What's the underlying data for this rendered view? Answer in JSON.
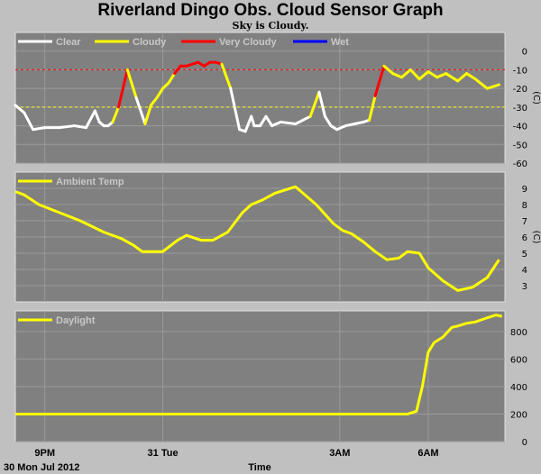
{
  "title": "Riverland Dingo Obs. Cloud Sensor Graph",
  "subtitle": "Sky is Cloudy.",
  "footer": {
    "date": "30 Mon Jul 2012",
    "xlabel": "Time"
  },
  "colors": {
    "panel_bg": "#808080",
    "page_bg": "#c0c0c0",
    "clear": "#ffffff",
    "cloudy": "#ffff00",
    "very_cloudy": "#ff0000",
    "wet": "#0000ff"
  },
  "x_ticks": [
    "9PM",
    "31 Tue",
    "3AM",
    "6AM"
  ],
  "chart_data": [
    {
      "type": "line",
      "name": "cloud",
      "legend": [
        "Clear",
        "Cloudy",
        "Very Cloudy",
        "Wet"
      ],
      "ylabel": "(C)",
      "ylim": [
        -60,
        10
      ],
      "yticks": [
        -60,
        -50,
        -40,
        -30,
        -20,
        -10,
        0
      ],
      "thresholds": [
        {
          "value": -10,
          "color": "red"
        },
        {
          "value": -30,
          "color": "yellow"
        }
      ],
      "x_hours": [
        0,
        0.3,
        0.6,
        1,
        1.5,
        2,
        2.4,
        2.7,
        2.85,
        3,
        3.15,
        3.3,
        3.5,
        3.8,
        4.1,
        4.4,
        4.6,
        4.8,
        5.0,
        5.2,
        5.4,
        5.6,
        5.8,
        6.0,
        6.2,
        6.4,
        6.6,
        6.8,
        7.0,
        7.3,
        7.6,
        7.8,
        8.0,
        8.1,
        8.3,
        8.5,
        8.7,
        9.0,
        9.5,
        10.0,
        10.3,
        10.5,
        10.7,
        10.9,
        11.2,
        11.5,
        11.8,
        12.0,
        12.2,
        12.5,
        12.8,
        13.1,
        13.4,
        13.7,
        14.0,
        14.3,
        14.6,
        15.0,
        15.3,
        15.6,
        16.0,
        16.4
      ],
      "values": [
        -29,
        -33,
        -42,
        -41,
        -41,
        -40,
        -41,
        -32,
        -38,
        -40,
        -40,
        -38,
        -30,
        -10,
        -25,
        -39,
        -29,
        -25,
        -20,
        -17,
        -12,
        -8,
        -8,
        -7,
        -6,
        -8,
        -6,
        -6,
        -7,
        -20,
        -42,
        -43,
        -35,
        -40,
        -40,
        -35,
        -40,
        -38,
        -39,
        -35,
        -22,
        -35,
        -40,
        -42,
        -40,
        -39,
        -38,
        -37,
        -24,
        -8,
        -12,
        -14,
        -10,
        -15,
        -11,
        -14,
        -12,
        -16,
        -12,
        -15,
        -20,
        -18
      ],
      "states": [
        "clear",
        "clear",
        "clear",
        "clear",
        "clear",
        "clear",
        "clear",
        "clear",
        "clear",
        "clear",
        "clear",
        "clear",
        "cloudy",
        "very_cloudy",
        "cloudy",
        "clear",
        "cloudy",
        "cloudy",
        "cloudy",
        "cloudy",
        "cloudy",
        "very_cloudy",
        "very_cloudy",
        "very_cloudy",
        "very_cloudy",
        "very_cloudy",
        "very_cloudy",
        "very_cloudy",
        "very_cloudy",
        "cloudy",
        "clear",
        "clear",
        "clear",
        "clear",
        "clear",
        "clear",
        "clear",
        "clear",
        "clear",
        "clear",
        "cloudy",
        "clear",
        "clear",
        "clear",
        "clear",
        "clear",
        "clear",
        "clear",
        "cloudy",
        "very_cloudy",
        "cloudy",
        "cloudy",
        "cloudy",
        "cloudy",
        "cloudy",
        "cloudy",
        "cloudy",
        "cloudy",
        "cloudy",
        "cloudy",
        "cloudy",
        "cloudy"
      ]
    },
    {
      "type": "line",
      "name": "ambient",
      "legend": [
        "Ambient Temp"
      ],
      "ylabel": "(C)",
      "ylim": [
        2,
        10
      ],
      "yticks": [
        3,
        4,
        5,
        6,
        7,
        8,
        9
      ],
      "x_hours": [
        0,
        0.3,
        0.8,
        1.5,
        2.2,
        3.0,
        3.6,
        4.0,
        4.3,
        5.0,
        5.5,
        5.8,
        6.3,
        6.7,
        7.2,
        7.7,
        8.0,
        8.4,
        8.8,
        9.5,
        10.2,
        10.8,
        11.1,
        11.4,
        11.8,
        12.2,
        12.6,
        13.0,
        13.3,
        13.7,
        14.0,
        14.5,
        15.0,
        15.5,
        16.0,
        16.4
      ],
      "values": [
        8.8,
        8.6,
        8.0,
        7.5,
        7.0,
        6.3,
        5.9,
        5.5,
        5.1,
        5.1,
        5.8,
        6.1,
        5.8,
        5.8,
        6.3,
        7.5,
        8.0,
        8.3,
        8.7,
        9.1,
        8.0,
        6.8,
        6.4,
        6.2,
        5.7,
        5.1,
        4.6,
        4.7,
        5.1,
        5.0,
        4.1,
        3.3,
        2.7,
        2.9,
        3.5,
        4.6
      ]
    },
    {
      "type": "line",
      "name": "daylight",
      "legend": [
        "Daylight"
      ],
      "ylabel": "",
      "ylim": [
        0,
        950
      ],
      "yticks": [
        0,
        200,
        400,
        600,
        800
      ],
      "x_hours": [
        0,
        5,
        10,
        13.3,
        13.6,
        13.8,
        14.0,
        14.2,
        14.5,
        14.8,
        15.0,
        15.3,
        15.6,
        16.0,
        16.3,
        16.5
      ],
      "values": [
        200,
        200,
        200,
        200,
        220,
        400,
        650,
        720,
        760,
        830,
        840,
        860,
        870,
        900,
        920,
        910
      ]
    }
  ]
}
